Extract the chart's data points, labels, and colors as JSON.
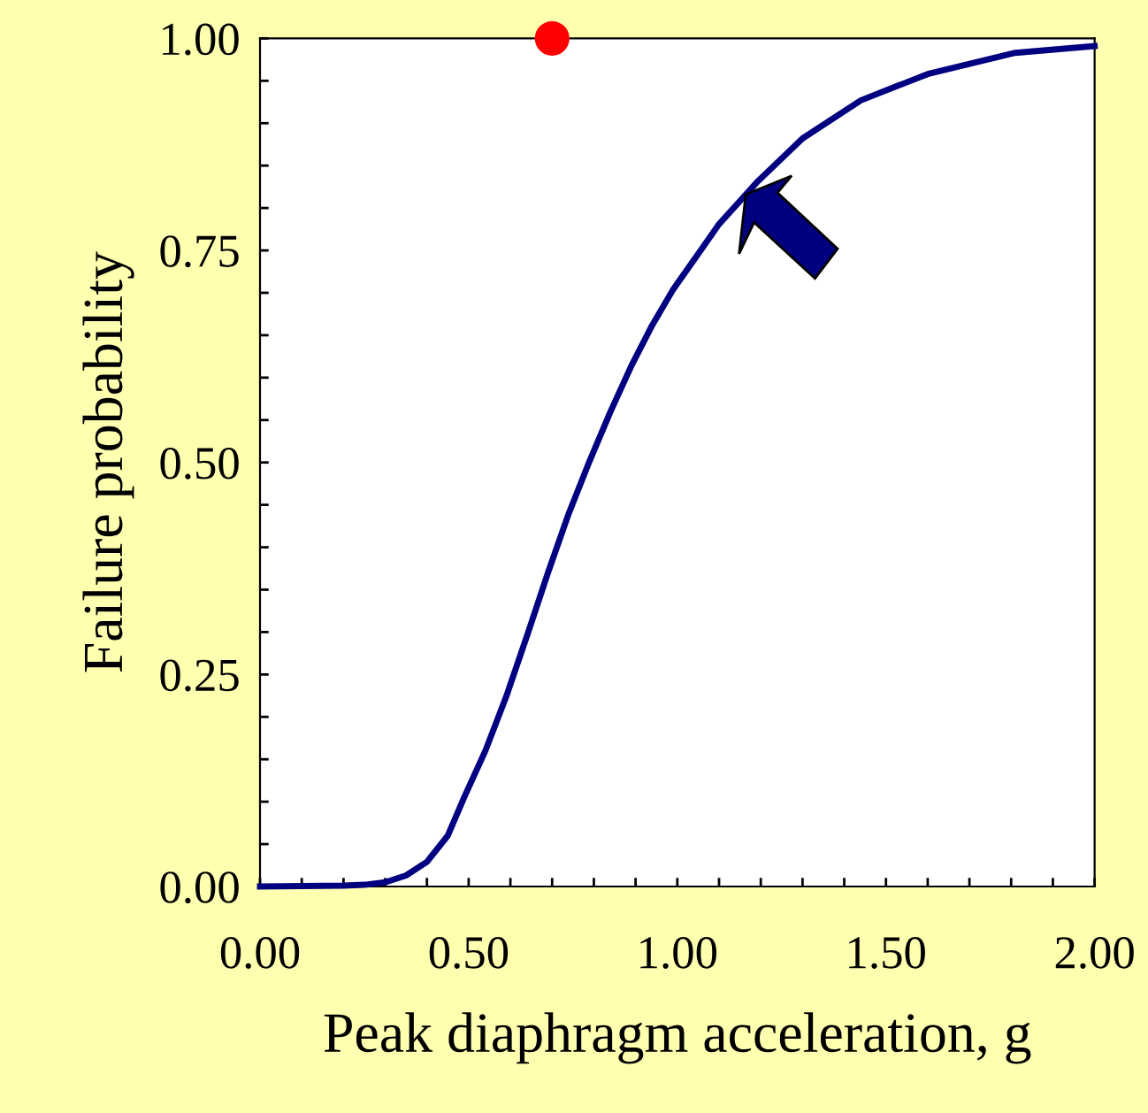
{
  "chart_data": {
    "type": "line",
    "xlabel": "Peak diaphragm acceleration, g",
    "ylabel": "Failure probability",
    "xlim": [
      0,
      2
    ],
    "ylim": [
      0,
      1
    ],
    "xticks": [
      {
        "value": 0,
        "label": "0.00"
      },
      {
        "value": 0.1,
        "label": null
      },
      {
        "value": 0.2,
        "label": null
      },
      {
        "value": 0.3,
        "label": null
      },
      {
        "value": 0.4,
        "label": null
      },
      {
        "value": 0.5,
        "label": "0.50"
      },
      {
        "value": 0.6,
        "label": null
      },
      {
        "value": 0.7,
        "label": null
      },
      {
        "value": 0.8,
        "label": null
      },
      {
        "value": 0.9,
        "label": null
      },
      {
        "value": 1,
        "label": "1.00"
      },
      {
        "value": 1.1,
        "label": null
      },
      {
        "value": 1.2,
        "label": null
      },
      {
        "value": 1.3,
        "label": null
      },
      {
        "value": 1.4,
        "label": null
      },
      {
        "value": 1.5,
        "label": "1.50"
      },
      {
        "value": 1.6,
        "label": null
      },
      {
        "value": 1.7,
        "label": null
      },
      {
        "value": 1.8,
        "label": null
      },
      {
        "value": 1.9,
        "label": null
      },
      {
        "value": 2,
        "label": "2.00"
      }
    ],
    "yticks": [
      {
        "value": 0,
        "label": "0.00"
      },
      {
        "value": 0.05,
        "label": null
      },
      {
        "value": 0.1,
        "label": null
      },
      {
        "value": 0.15,
        "label": null
      },
      {
        "value": 0.2,
        "label": null
      },
      {
        "value": 0.25,
        "label": "0.25"
      },
      {
        "value": 0.3,
        "label": null
      },
      {
        "value": 0.35,
        "label": null
      },
      {
        "value": 0.4,
        "label": null
      },
      {
        "value": 0.45,
        "label": null
      },
      {
        "value": 0.5,
        "label": "0.50"
      },
      {
        "value": 0.55,
        "label": null
      },
      {
        "value": 0.6,
        "label": null
      },
      {
        "value": 0.65,
        "label": null
      },
      {
        "value": 0.7,
        "label": null
      },
      {
        "value": 0.75,
        "label": "0.75"
      },
      {
        "value": 0.8,
        "label": null
      },
      {
        "value": 0.85,
        "label": null
      },
      {
        "value": 0.9,
        "label": null
      },
      {
        "value": 0.95,
        "label": null
      },
      {
        "value": 1,
        "label": "1.00"
      }
    ],
    "grid": false,
    "series": [
      {
        "color": "#000080",
        "marker": "none",
        "line_style": "solid",
        "x": [
          0,
          0.2,
          0.25,
          0.3,
          0.35,
          0.4,
          0.45,
          0.49,
          0.54,
          0.59,
          0.64,
          0.69,
          0.74,
          0.79,
          0.84,
          0.89,
          0.94,
          0.99,
          1.05,
          1.1,
          1.19,
          1.3,
          1.44,
          1.6,
          1.81,
          2.0
        ],
        "values": [
          0,
          0.001,
          0.002,
          0.005,
          0.013,
          0.029,
          0.06,
          0.106,
          0.16,
          0.224,
          0.296,
          0.37,
          0.44,
          0.502,
          0.56,
          0.614,
          0.662,
          0.704,
          0.746,
          0.781,
          0.83,
          0.882,
          0.927,
          0.958,
          0.983,
          0.991
        ]
      },
      {
        "type": "scatter",
        "color": "#ff0000",
        "marker": "circle",
        "x": [
          0.7
        ],
        "values": [
          1.0
        ]
      }
    ]
  }
}
